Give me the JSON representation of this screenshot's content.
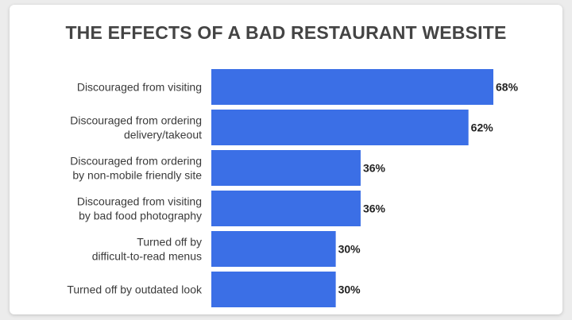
{
  "chart_data": {
    "type": "bar",
    "orientation": "horizontal",
    "title": "THE EFFECTS OF A BAD RESTAURANT WEBSITE",
    "categories": [
      [
        "Discouraged from visiting"
      ],
      [
        "Discouraged from ordering",
        "delivery/takeout"
      ],
      [
        "Discouraged from ordering",
        "by non-mobile friendly site"
      ],
      [
        "Discouraged from visiting",
        "by bad food photography"
      ],
      [
        "Turned off by",
        "difficult-to-read menus"
      ],
      [
        "Turned off by outdated look"
      ]
    ],
    "values": [
      68,
      62,
      36,
      36,
      30,
      30
    ],
    "value_labels": [
      "68%",
      "62%",
      "36%",
      "36%",
      "30%",
      "30%"
    ],
    "xlim": [
      0,
      68
    ],
    "grid": false,
    "bar_color": "#3b6fe6"
  }
}
